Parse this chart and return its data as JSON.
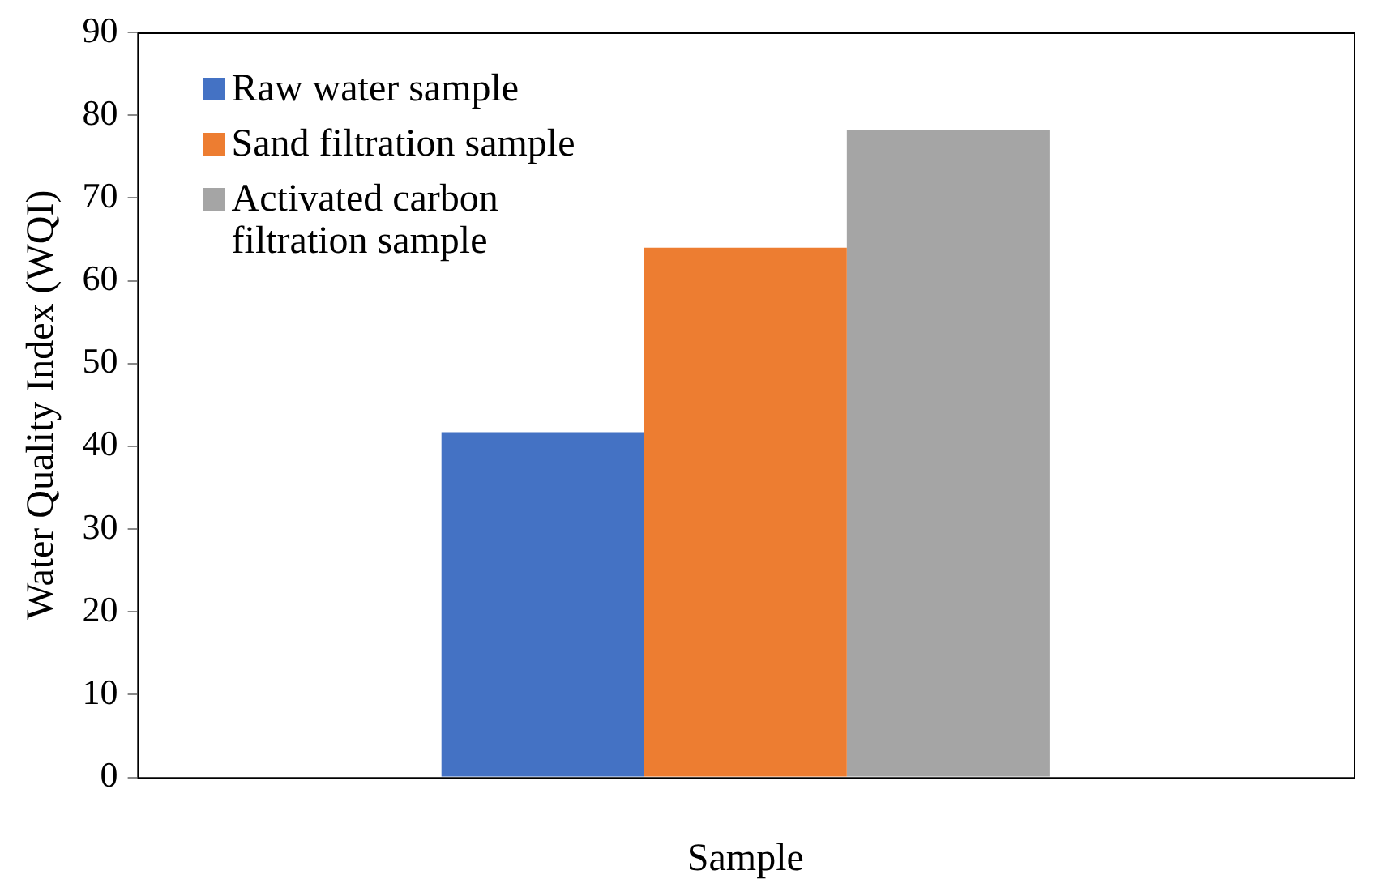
{
  "chart_data": {
    "type": "bar",
    "xlabel": "Sample",
    "ylabel": "Water Quality Index (WQI)",
    "categories": [
      null
    ],
    "series": [
      {
        "name": "Raw water sample",
        "color": "#4472c4",
        "values": [
          41.7
        ]
      },
      {
        "name": "Sand filtration sample",
        "color": "#ed7d31",
        "values": [
          64.0
        ]
      },
      {
        "name": "Activated carbon filtration sample",
        "color": "#a5a5a5",
        "values": [
          78.2
        ]
      }
    ],
    "ylim": [
      0,
      90
    ],
    "yticks": [
      0,
      10,
      20,
      30,
      40,
      50,
      60,
      70,
      80,
      90
    ],
    "grid": false,
    "legend": "top left"
  }
}
